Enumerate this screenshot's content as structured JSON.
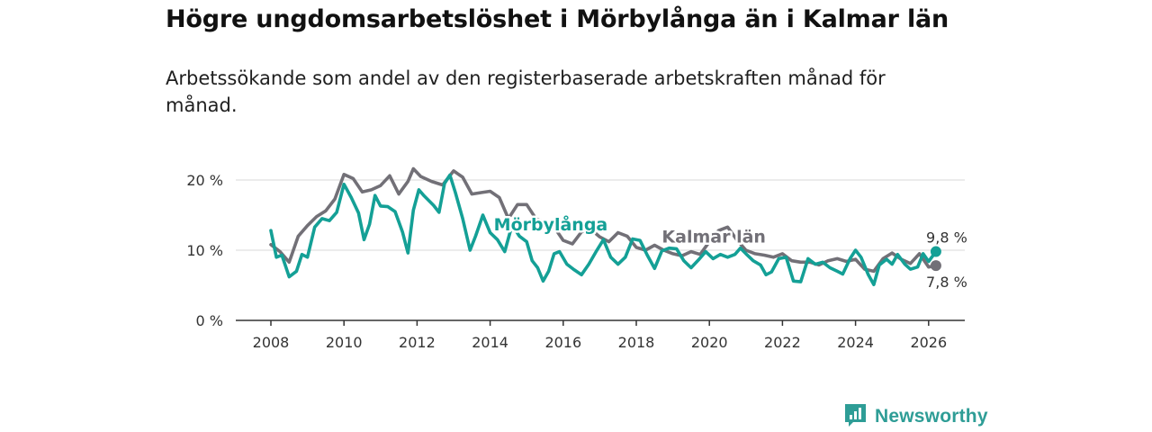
{
  "title": "Högre ungdomsarbetslöshet i Mörbylånga än i Kalmar län",
  "subtitle": "Arbetssökande som andel av den registerbaserade arbetskraften månad för månad.",
  "brand": {
    "name": "Newsworthy",
    "icon": "newsworthy-logo-icon"
  },
  "colors": {
    "morbylanga": "#14a096",
    "kalmar": "#727077",
    "grid": "#d9d9d9",
    "axis": "#333333"
  },
  "chart_data": {
    "type": "line",
    "title": "Högre ungdomsarbetslöshet i Mörbylånga än i Kalmar län",
    "xlabel": "",
    "ylabel": "",
    "xlim": [
      2007.6,
      2026.9
    ],
    "ylim": [
      0,
      20
    ],
    "grid": true,
    "y_ticks": [
      0,
      10,
      20
    ],
    "y_tick_labels": [
      "0 %",
      "10 %",
      "20 %"
    ],
    "x_ticks": [
      2008,
      2010,
      2012,
      2014,
      2016,
      2018,
      2020,
      2022,
      2024,
      2026
    ],
    "x_tick_labels": [
      "2008",
      "2010",
      "2012",
      "2014",
      "2016",
      "2018",
      "2020",
      "2022",
      "2024",
      "2026"
    ],
    "series": [
      {
        "name": "Kalmar län",
        "label_at": [
          2018.7,
          11.1
        ],
        "end_label": "7,8 %",
        "end_value": 7.8,
        "points": [
          [
            2008.0,
            10.8
          ],
          [
            2008.25,
            9.8
          ],
          [
            2008.5,
            8.3
          ],
          [
            2008.75,
            12.0
          ],
          [
            2009.0,
            13.5
          ],
          [
            2009.25,
            14.8
          ],
          [
            2009.5,
            15.6
          ],
          [
            2009.75,
            17.3
          ],
          [
            2010.0,
            20.8
          ],
          [
            2010.25,
            20.2
          ],
          [
            2010.5,
            18.3
          ],
          [
            2010.75,
            18.6
          ],
          [
            2011.0,
            19.2
          ],
          [
            2011.25,
            20.6
          ],
          [
            2011.5,
            18.0
          ],
          [
            2011.75,
            19.8
          ],
          [
            2011.9,
            21.6
          ],
          [
            2012.1,
            20.5
          ],
          [
            2012.4,
            19.8
          ],
          [
            2012.7,
            19.3
          ],
          [
            2013.0,
            21.3
          ],
          [
            2013.25,
            20.4
          ],
          [
            2013.5,
            18.0
          ],
          [
            2013.75,
            18.2
          ],
          [
            2014.0,
            18.4
          ],
          [
            2014.25,
            17.5
          ],
          [
            2014.5,
            14.5
          ],
          [
            2014.75,
            16.5
          ],
          [
            2015.0,
            16.5
          ],
          [
            2015.25,
            14.5
          ],
          [
            2015.5,
            13.9
          ],
          [
            2015.75,
            13.3
          ],
          [
            2016.0,
            11.4
          ],
          [
            2016.25,
            10.9
          ],
          [
            2016.5,
            12.6
          ],
          [
            2016.75,
            13.0
          ],
          [
            2017.0,
            11.9
          ],
          [
            2017.25,
            11.2
          ],
          [
            2017.5,
            12.5
          ],
          [
            2017.75,
            12.0
          ],
          [
            2018.0,
            10.4
          ],
          [
            2018.25,
            10.0
          ],
          [
            2018.5,
            10.7
          ],
          [
            2018.75,
            10.0
          ],
          [
            2019.0,
            9.5
          ],
          [
            2019.25,
            9.2
          ],
          [
            2019.5,
            9.8
          ],
          [
            2019.75,
            9.4
          ],
          [
            2020.0,
            11.2
          ],
          [
            2020.25,
            12.8
          ],
          [
            2020.5,
            13.3
          ],
          [
            2020.75,
            11.5
          ],
          [
            2021.0,
            10.0
          ],
          [
            2021.25,
            9.5
          ],
          [
            2021.5,
            9.3
          ],
          [
            2021.75,
            9.0
          ],
          [
            2022.0,
            9.5
          ],
          [
            2022.25,
            8.5
          ],
          [
            2022.5,
            8.3
          ],
          [
            2022.75,
            8.3
          ],
          [
            2023.0,
            7.9
          ],
          [
            2023.25,
            8.5
          ],
          [
            2023.5,
            8.8
          ],
          [
            2023.75,
            8.4
          ],
          [
            2024.0,
            8.7
          ],
          [
            2024.25,
            7.3
          ],
          [
            2024.5,
            7.0
          ],
          [
            2024.75,
            8.8
          ],
          [
            2025.0,
            9.6
          ],
          [
            2025.25,
            8.7
          ],
          [
            2025.5,
            8.1
          ],
          [
            2025.75,
            9.5
          ],
          [
            2026.0,
            7.6
          ],
          [
            2026.2,
            7.8
          ]
        ]
      },
      {
        "name": "Mörbylånga",
        "label_at": [
          2014.1,
          12.8
        ],
        "end_label": "9,8 %",
        "end_value": 9.8,
        "points": [
          [
            2008.0,
            12.8
          ],
          [
            2008.15,
            9.0
          ],
          [
            2008.3,
            9.3
          ],
          [
            2008.5,
            6.2
          ],
          [
            2008.7,
            7.0
          ],
          [
            2008.85,
            9.4
          ],
          [
            2009.0,
            9.0
          ],
          [
            2009.2,
            13.3
          ],
          [
            2009.4,
            14.5
          ],
          [
            2009.6,
            14.2
          ],
          [
            2009.8,
            15.4
          ],
          [
            2010.0,
            19.4
          ],
          [
            2010.2,
            17.5
          ],
          [
            2010.4,
            15.3
          ],
          [
            2010.55,
            11.5
          ],
          [
            2010.7,
            13.7
          ],
          [
            2010.85,
            17.8
          ],
          [
            2011.0,
            16.3
          ],
          [
            2011.2,
            16.2
          ],
          [
            2011.4,
            15.5
          ],
          [
            2011.6,
            12.6
          ],
          [
            2011.75,
            9.6
          ],
          [
            2011.9,
            15.7
          ],
          [
            2012.05,
            18.6
          ],
          [
            2012.2,
            17.7
          ],
          [
            2012.45,
            16.4
          ],
          [
            2012.6,
            15.4
          ],
          [
            2012.75,
            19.5
          ],
          [
            2012.9,
            20.7
          ],
          [
            2013.05,
            18.2
          ],
          [
            2013.25,
            14.5
          ],
          [
            2013.45,
            10.0
          ],
          [
            2013.6,
            12.0
          ],
          [
            2013.8,
            15.0
          ],
          [
            2014.0,
            12.5
          ],
          [
            2014.2,
            11.5
          ],
          [
            2014.4,
            9.8
          ],
          [
            2014.6,
            13.6
          ],
          [
            2014.8,
            12.0
          ],
          [
            2015.0,
            11.2
          ],
          [
            2015.15,
            8.5
          ],
          [
            2015.3,
            7.5
          ],
          [
            2015.45,
            5.6
          ],
          [
            2015.6,
            7.0
          ],
          [
            2015.75,
            9.5
          ],
          [
            2015.9,
            9.8
          ],
          [
            2016.1,
            8.0
          ],
          [
            2016.3,
            7.2
          ],
          [
            2016.5,
            6.5
          ],
          [
            2016.7,
            8.0
          ],
          [
            2016.9,
            9.8
          ],
          [
            2017.1,
            11.5
          ],
          [
            2017.3,
            9.0
          ],
          [
            2017.5,
            8.0
          ],
          [
            2017.7,
            9.0
          ],
          [
            2017.9,
            11.6
          ],
          [
            2018.1,
            11.4
          ],
          [
            2018.3,
            9.3
          ],
          [
            2018.5,
            7.4
          ],
          [
            2018.7,
            9.9
          ],
          [
            2018.9,
            10.3
          ],
          [
            2019.1,
            10.2
          ],
          [
            2019.3,
            8.5
          ],
          [
            2019.5,
            7.5
          ],
          [
            2019.7,
            8.6
          ],
          [
            2019.9,
            9.8
          ],
          [
            2020.1,
            8.8
          ],
          [
            2020.3,
            9.4
          ],
          [
            2020.5,
            9.0
          ],
          [
            2020.7,
            9.4
          ],
          [
            2020.85,
            10.3
          ],
          [
            2021.0,
            9.5
          ],
          [
            2021.2,
            8.5
          ],
          [
            2021.4,
            7.9
          ],
          [
            2021.55,
            6.5
          ],
          [
            2021.7,
            6.9
          ],
          [
            2021.9,
            8.8
          ],
          [
            2022.1,
            9.0
          ],
          [
            2022.3,
            5.6
          ],
          [
            2022.5,
            5.5
          ],
          [
            2022.7,
            8.8
          ],
          [
            2022.9,
            8.0
          ],
          [
            2023.1,
            8.3
          ],
          [
            2023.3,
            7.5
          ],
          [
            2023.5,
            7.0
          ],
          [
            2023.65,
            6.6
          ],
          [
            2023.85,
            8.8
          ],
          [
            2024.0,
            10.0
          ],
          [
            2024.15,
            9.0
          ],
          [
            2024.35,
            6.5
          ],
          [
            2024.5,
            5.1
          ],
          [
            2024.65,
            7.9
          ],
          [
            2024.85,
            8.7
          ],
          [
            2025.0,
            8.0
          ],
          [
            2025.15,
            9.4
          ],
          [
            2025.35,
            8.0
          ],
          [
            2025.5,
            7.3
          ],
          [
            2025.7,
            7.6
          ],
          [
            2025.85,
            9.5
          ],
          [
            2026.0,
            8.4
          ],
          [
            2026.2,
            9.8
          ]
        ]
      }
    ]
  }
}
